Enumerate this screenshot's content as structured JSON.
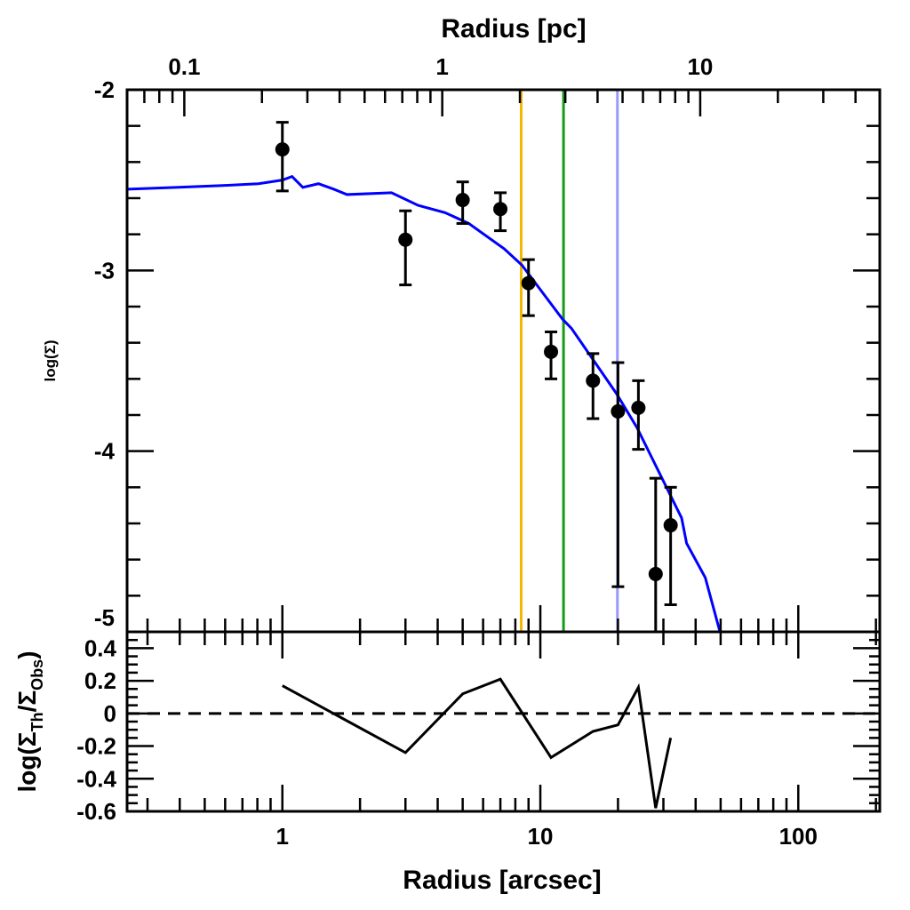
{
  "chart_data": [
    {
      "type": "scatter",
      "panel": "main",
      "xlabel": "Radius [arcsec]",
      "x2label": "Radius [pc]",
      "ylabel": "log(Σ)",
      "xscale": "log",
      "xlim": [
        0.25,
        207
      ],
      "x2_pc_per_arcsec": 0.24,
      "x2_ticks": [
        "0.1",
        "1",
        "10"
      ],
      "ylim": [
        -5,
        -2
      ],
      "y_ticks": [
        "-2",
        "-3",
        "-4",
        "-5"
      ],
      "points": [
        {
          "x": 1,
          "y": -2.33,
          "err_hi": -2.18,
          "err_lo": -2.56
        },
        {
          "x": 3,
          "y": -2.83,
          "err_hi": -2.67,
          "err_lo": -3.08
        },
        {
          "x": 5,
          "y": -2.61,
          "err_hi": -2.51,
          "err_lo": -2.74
        },
        {
          "x": 7,
          "y": -2.66,
          "err_hi": -2.57,
          "err_lo": -2.78
        },
        {
          "x": 9,
          "y": -3.07,
          "err_hi": -2.94,
          "err_lo": -3.25
        },
        {
          "x": 11,
          "y": -3.45,
          "err_hi": -3.34,
          "err_lo": -3.6
        },
        {
          "x": 16,
          "y": -3.61,
          "err_hi": -3.46,
          "err_lo": -3.82
        },
        {
          "x": 20,
          "y": -3.78,
          "err_hi": -3.51,
          "err_lo": -4.75
        },
        {
          "x": 24,
          "y": -3.76,
          "err_hi": -3.61,
          "err_lo": -3.99
        },
        {
          "x": 28,
          "y": -4.68,
          "err_hi": -4.15,
          "err_lo": -5.2
        },
        {
          "x": 32,
          "y": -4.41,
          "err_hi": -4.2,
          "err_lo": -4.85
        }
      ],
      "model_curve": {
        "color": "#0000ff",
        "x": [
          0.252,
          0.396,
          0.588,
          0.807,
          1.0,
          1.09,
          1.2,
          1.38,
          1.58,
          1.78,
          2.65,
          3.36,
          4.27,
          5.28,
          7.24,
          8.48,
          12.2,
          13.2,
          19.7,
          23.7,
          35.3,
          36.9,
          43.6,
          49.7
        ],
        "y": [
          -2.55,
          -2.54,
          -2.53,
          -2.52,
          -2.5,
          -2.48,
          -2.54,
          -2.52,
          -2.55,
          -2.58,
          -2.57,
          -2.64,
          -2.68,
          -2.74,
          -2.88,
          -2.97,
          -3.27,
          -3.32,
          -3.68,
          -3.87,
          -4.37,
          -4.51,
          -4.7,
          -5.0
        ]
      },
      "vertical_lines": [
        {
          "x": 8.43,
          "color": "#f5b800"
        },
        {
          "x": 12.3,
          "color": "#1a9a1a"
        },
        {
          "x": 19.9,
          "color": "#9999ff"
        }
      ]
    },
    {
      "type": "line",
      "panel": "residual",
      "xlabel": "Radius [arcsec]",
      "ylabel": "log(Σ_Th/Σ_Obs)",
      "ylabel_parts": {
        "pre": "log(Σ",
        "sub1": "Th",
        "mid": "/Σ",
        "sub2": "Obs",
        "post": ")"
      },
      "xscale": "log",
      "xlim": [
        0.25,
        207
      ],
      "x_ticks": [
        "1",
        "10",
        "100"
      ],
      "ylim": [
        -0.6,
        0.5
      ],
      "y_ticks": [
        "0.4",
        "0.2",
        "0",
        "-0.2",
        "-0.4",
        "-0.6"
      ],
      "reference_line": {
        "y": 0,
        "style": "dashed"
      },
      "x": [
        1,
        3,
        5,
        7,
        11,
        16,
        20,
        24,
        28,
        32
      ],
      "y": [
        0.17,
        -0.24,
        0.12,
        0.21,
        -0.27,
        -0.11,
        -0.07,
        0.16,
        -0.58,
        -0.15
      ]
    }
  ]
}
